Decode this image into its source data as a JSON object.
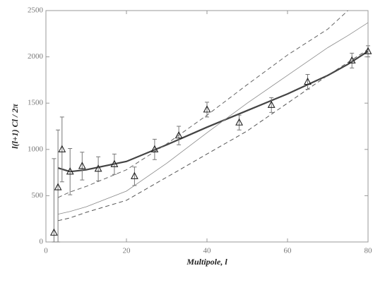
{
  "chart_data": {
    "type": "scatter",
    "x_label": "Multipole, l",
    "y_label": "l(l+1) Cl / 2π",
    "x": [
      2,
      3,
      4,
      6,
      9,
      13,
      17,
      22,
      27,
      33,
      40,
      48,
      56,
      65,
      76,
      80
    ],
    "values": [
      100,
      590,
      1000,
      760,
      820,
      790,
      840,
      710,
      1000,
      1150,
      1430,
      1290,
      1480,
      1730,
      1960,
      2060
    ],
    "errors": [
      800,
      620,
      350,
      250,
      150,
      130,
      110,
      100,
      110,
      100,
      80,
      80,
      80,
      80,
      80,
      60
    ],
    "color": "#222222",
    "line_x": [
      3,
      6,
      10,
      20,
      30,
      40,
      50,
      60,
      70,
      75,
      80
    ],
    "lines": [
      {
        "values": [
          800,
          760,
          780,
          870,
          1050,
          1240,
          1420,
          1600,
          1800,
          1920,
          2060
        ],
        "style": "solid",
        "width": 2.2,
        "color": "#444444"
      },
      {
        "values": [
          480,
          540,
          600,
          780,
          1060,
          1370,
          1700,
          2020,
          2300,
          2500,
          null
        ],
        "style": "dashed",
        "width": 1,
        "color": "#666666"
      },
      {
        "values": [
          300,
          330,
          380,
          550,
          850,
          1180,
          1500,
          1800,
          2100,
          2230,
          2370
        ],
        "style": "solid",
        "width": 0.8,
        "color": "#888888"
      },
      {
        "values": [
          230,
          260,
          320,
          450,
          700,
          950,
          1200,
          1500,
          1800,
          1940,
          2080
        ],
        "style": "dashed",
        "width": 1,
        "color": "#555555"
      }
    ],
    "xlim": [
      0,
      80
    ],
    "xticks": [
      0,
      20,
      40,
      60,
      80
    ],
    "ylim": [
      0,
      2500
    ],
    "yticks": [
      0,
      500,
      1000,
      1500,
      2000,
      2500
    ]
  }
}
